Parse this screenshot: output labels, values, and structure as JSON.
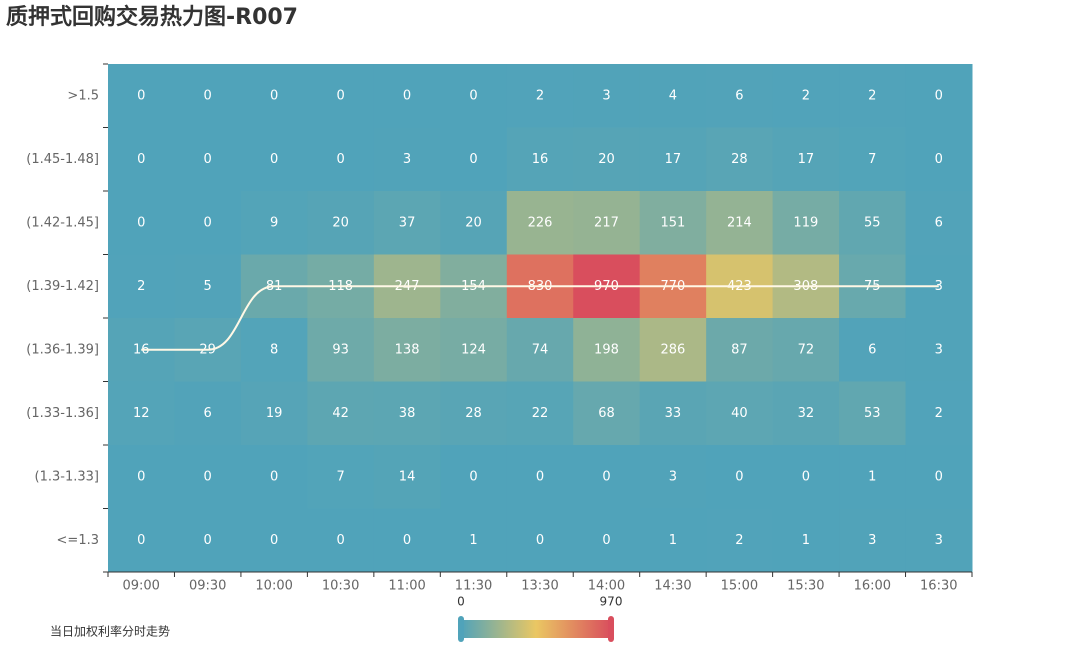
{
  "chart_data": {
    "type": "heatmap",
    "title": "质押式回购交易热力图-R007",
    "x_categories": [
      "09:00",
      "09:30",
      "10:00",
      "10:30",
      "11:00",
      "11:30",
      "13:30",
      "14:00",
      "14:30",
      "15:00",
      "15:30",
      "16:00",
      "16:30"
    ],
    "y_categories": [
      ">1.5",
      "(1.45-1.48]",
      "(1.42-1.45]",
      "(1.39-1.42]",
      "(1.36-1.39]",
      "(1.33-1.36]",
      "(1.3-1.33]",
      "<=1.3"
    ],
    "values": [
      [
        0,
        0,
        0,
        0,
        0,
        0,
        2,
        3,
        4,
        6,
        2,
        2,
        0
      ],
      [
        0,
        0,
        0,
        0,
        3,
        0,
        16,
        20,
        17,
        28,
        17,
        7,
        0
      ],
      [
        0,
        0,
        9,
        20,
        37,
        20,
        226,
        217,
        151,
        214,
        119,
        55,
        6
      ],
      [
        2,
        5,
        81,
        118,
        247,
        154,
        830,
        970,
        770,
        423,
        308,
        75,
        3
      ],
      [
        16,
        29,
        8,
        93,
        138,
        124,
        74,
        198,
        286,
        87,
        72,
        6,
        3
      ],
      [
        12,
        6,
        19,
        42,
        38,
        28,
        22,
        68,
        33,
        40,
        32,
        53,
        2
      ],
      [
        0,
        0,
        0,
        7,
        14,
        0,
        0,
        0,
        3,
        0,
        0,
        1,
        0
      ],
      [
        0,
        0,
        0,
        0,
        0,
        1,
        0,
        0,
        1,
        2,
        1,
        3,
        3
      ]
    ],
    "line": {
      "name": "当日加权利率分时走势",
      "color": "#fff8e6",
      "values": [
        "(1.36-1.39]",
        "(1.36-1.39]",
        "(1.39-1.42]",
        "(1.39-1.42]",
        "(1.39-1.42]",
        "(1.39-1.42]",
        "(1.39-1.42]",
        "(1.39-1.42]",
        "(1.39-1.42]",
        "(1.39-1.42]",
        "(1.39-1.42]",
        "(1.39-1.42]",
        "(1.39-1.42]"
      ]
    },
    "visual_map": {
      "min": 0,
      "max": 970,
      "colors": [
        "#50a3ba",
        "#eac763",
        "#d94e5d"
      ]
    }
  }
}
